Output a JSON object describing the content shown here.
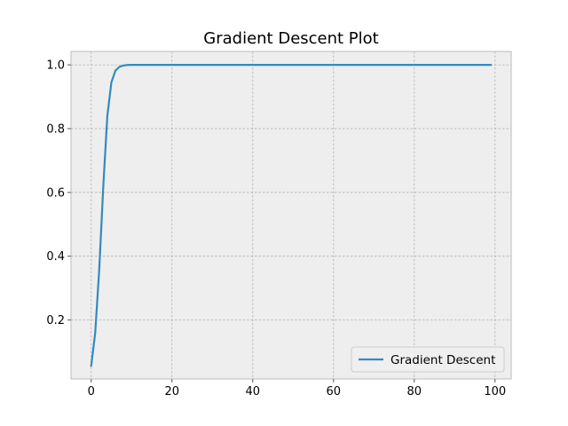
{
  "chart_data": {
    "type": "line",
    "title": "Gradient Descent Plot",
    "xlabel": "",
    "ylabel": "",
    "xlim": [
      -5,
      104
    ],
    "ylim": [
      0.015,
      1.042
    ],
    "xticks": [
      0,
      20,
      40,
      60,
      80,
      100
    ],
    "yticks": [
      0.2,
      0.4,
      0.6,
      0.8,
      1.0
    ],
    "xtick_labels": [
      "0",
      "20",
      "40",
      "60",
      "80",
      "100"
    ],
    "ytick_labels": [
      "0.2",
      "0.4",
      "0.6",
      "0.8",
      "1.0"
    ],
    "grid": true,
    "legend_position": "lower right",
    "series": [
      {
        "name": "Gradient Descent",
        "color": "#348abd",
        "x": [
          0,
          1,
          2,
          3,
          4,
          5,
          6,
          7,
          8,
          9,
          10,
          12,
          15,
          20,
          30,
          40,
          50,
          60,
          70,
          80,
          90,
          99
        ],
        "y": [
          0.056,
          0.16,
          0.36,
          0.62,
          0.84,
          0.945,
          0.982,
          0.994,
          0.998,
          0.9995,
          1.0,
          1.0,
          1.0,
          1.0,
          1.0,
          1.0,
          1.0,
          1.0,
          1.0,
          1.0,
          1.0,
          1.0
        ]
      }
    ]
  }
}
